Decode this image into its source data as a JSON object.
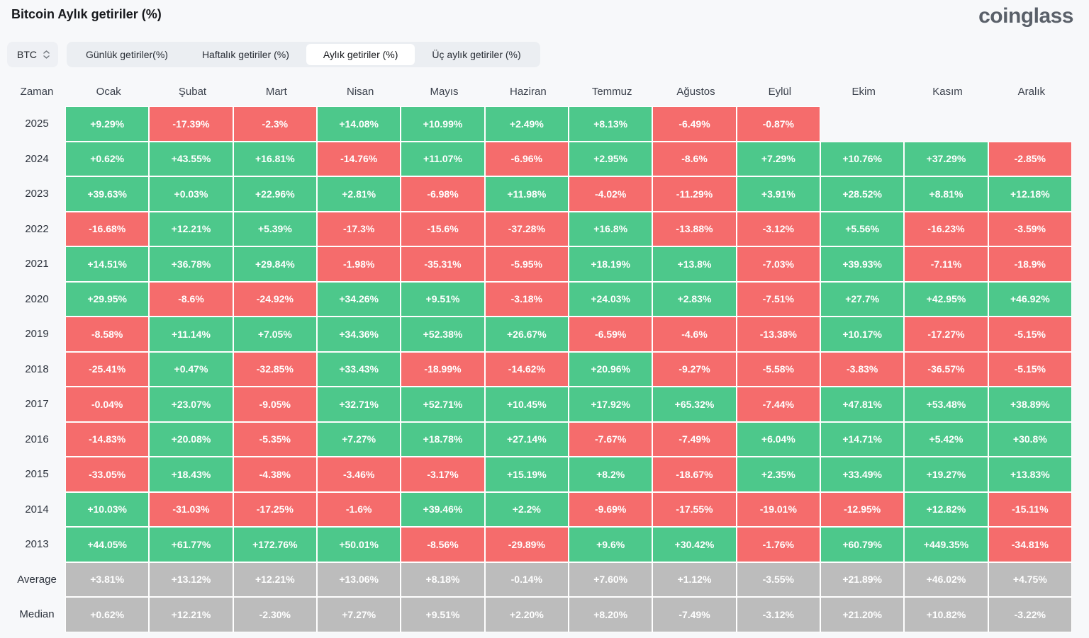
{
  "header": {
    "title": "Bitcoin Aylık getiriler (%)",
    "logo": "coinglass"
  },
  "controls": {
    "symbol": "BTC",
    "tabs": [
      {
        "label": "Günlük getiriler(%)",
        "active": false
      },
      {
        "label": "Haftalık getiriler (%)",
        "active": false
      },
      {
        "label": "Aylık getiriler (%)",
        "active": true
      },
      {
        "label": "Üç aylık getiriler (%)",
        "active": false
      }
    ]
  },
  "colors": {
    "positive": "#4dc88b",
    "negative": "#f56c6c",
    "neutral": "#bcbcbc"
  },
  "table": {
    "columns": [
      "Zaman",
      "Ocak",
      "Şubat",
      "Mart",
      "Nisan",
      "Mayıs",
      "Haziran",
      "Temmuz",
      "Ağustos",
      "Eylül",
      "Ekim",
      "Kasım",
      "Aralık"
    ],
    "rows": [
      {
        "label": "2025",
        "type": "year",
        "values": [
          "+9.29%",
          "-17.39%",
          "-2.3%",
          "+14.08%",
          "+10.99%",
          "+2.49%",
          "+8.13%",
          "-6.49%",
          "-0.87%",
          "",
          "",
          ""
        ]
      },
      {
        "label": "2024",
        "type": "year",
        "values": [
          "+0.62%",
          "+43.55%",
          "+16.81%",
          "-14.76%",
          "+11.07%",
          "-6.96%",
          "+2.95%",
          "-8.6%",
          "+7.29%",
          "+10.76%",
          "+37.29%",
          "-2.85%"
        ]
      },
      {
        "label": "2023",
        "type": "year",
        "values": [
          "+39.63%",
          "+0.03%",
          "+22.96%",
          "+2.81%",
          "-6.98%",
          "+11.98%",
          "-4.02%",
          "-11.29%",
          "+3.91%",
          "+28.52%",
          "+8.81%",
          "+12.18%"
        ]
      },
      {
        "label": "2022",
        "type": "year",
        "values": [
          "-16.68%",
          "+12.21%",
          "+5.39%",
          "-17.3%",
          "-15.6%",
          "-37.28%",
          "+16.8%",
          "-13.88%",
          "-3.12%",
          "+5.56%",
          "-16.23%",
          "-3.59%"
        ]
      },
      {
        "label": "2021",
        "type": "year",
        "values": [
          "+14.51%",
          "+36.78%",
          "+29.84%",
          "-1.98%",
          "-35.31%",
          "-5.95%",
          "+18.19%",
          "+13.8%",
          "-7.03%",
          "+39.93%",
          "-7.11%",
          "-18.9%"
        ]
      },
      {
        "label": "2020",
        "type": "year",
        "values": [
          "+29.95%",
          "-8.6%",
          "-24.92%",
          "+34.26%",
          "+9.51%",
          "-3.18%",
          "+24.03%",
          "+2.83%",
          "-7.51%",
          "+27.7%",
          "+42.95%",
          "+46.92%"
        ]
      },
      {
        "label": "2019",
        "type": "year",
        "values": [
          "-8.58%",
          "+11.14%",
          "+7.05%",
          "+34.36%",
          "+52.38%",
          "+26.67%",
          "-6.59%",
          "-4.6%",
          "-13.38%",
          "+10.17%",
          "-17.27%",
          "-5.15%"
        ]
      },
      {
        "label": "2018",
        "type": "year",
        "values": [
          "-25.41%",
          "+0.47%",
          "-32.85%",
          "+33.43%",
          "-18.99%",
          "-14.62%",
          "+20.96%",
          "-9.27%",
          "-5.58%",
          "-3.83%",
          "-36.57%",
          "-5.15%"
        ]
      },
      {
        "label": "2017",
        "type": "year",
        "values": [
          "-0.04%",
          "+23.07%",
          "-9.05%",
          "+32.71%",
          "+52.71%",
          "+10.45%",
          "+17.92%",
          "+65.32%",
          "-7.44%",
          "+47.81%",
          "+53.48%",
          "+38.89%"
        ]
      },
      {
        "label": "2016",
        "type": "year",
        "values": [
          "-14.83%",
          "+20.08%",
          "-5.35%",
          "+7.27%",
          "+18.78%",
          "+27.14%",
          "-7.67%",
          "-7.49%",
          "+6.04%",
          "+14.71%",
          "+5.42%",
          "+30.8%"
        ]
      },
      {
        "label": "2015",
        "type": "year",
        "values": [
          "-33.05%",
          "+18.43%",
          "-4.38%",
          "-3.46%",
          "-3.17%",
          "+15.19%",
          "+8.2%",
          "-18.67%",
          "+2.35%",
          "+33.49%",
          "+19.27%",
          "+13.83%"
        ]
      },
      {
        "label": "2014",
        "type": "year",
        "values": [
          "+10.03%",
          "-31.03%",
          "-17.25%",
          "-1.6%",
          "+39.46%",
          "+2.2%",
          "-9.69%",
          "-17.55%",
          "-19.01%",
          "-12.95%",
          "+12.82%",
          "-15.11%"
        ]
      },
      {
        "label": "2013",
        "type": "year",
        "values": [
          "+44.05%",
          "+61.77%",
          "+172.76%",
          "+50.01%",
          "-8.56%",
          "-29.89%",
          "+9.6%",
          "+30.42%",
          "-1.76%",
          "+60.79%",
          "+449.35%",
          "-34.81%"
        ]
      },
      {
        "label": "Average",
        "type": "summary",
        "values": [
          "+3.81%",
          "+13.12%",
          "+12.21%",
          "+13.06%",
          "+8.18%",
          "-0.14%",
          "+7.60%",
          "+1.12%",
          "-3.55%",
          "+21.89%",
          "+46.02%",
          "+4.75%"
        ]
      },
      {
        "label": "Median",
        "type": "summary",
        "values": [
          "+0.62%",
          "+12.21%",
          "-2.30%",
          "+7.27%",
          "+9.51%",
          "+2.20%",
          "+8.20%",
          "-7.49%",
          "-3.12%",
          "+21.20%",
          "+10.82%",
          "-3.22%"
        ]
      }
    ]
  }
}
